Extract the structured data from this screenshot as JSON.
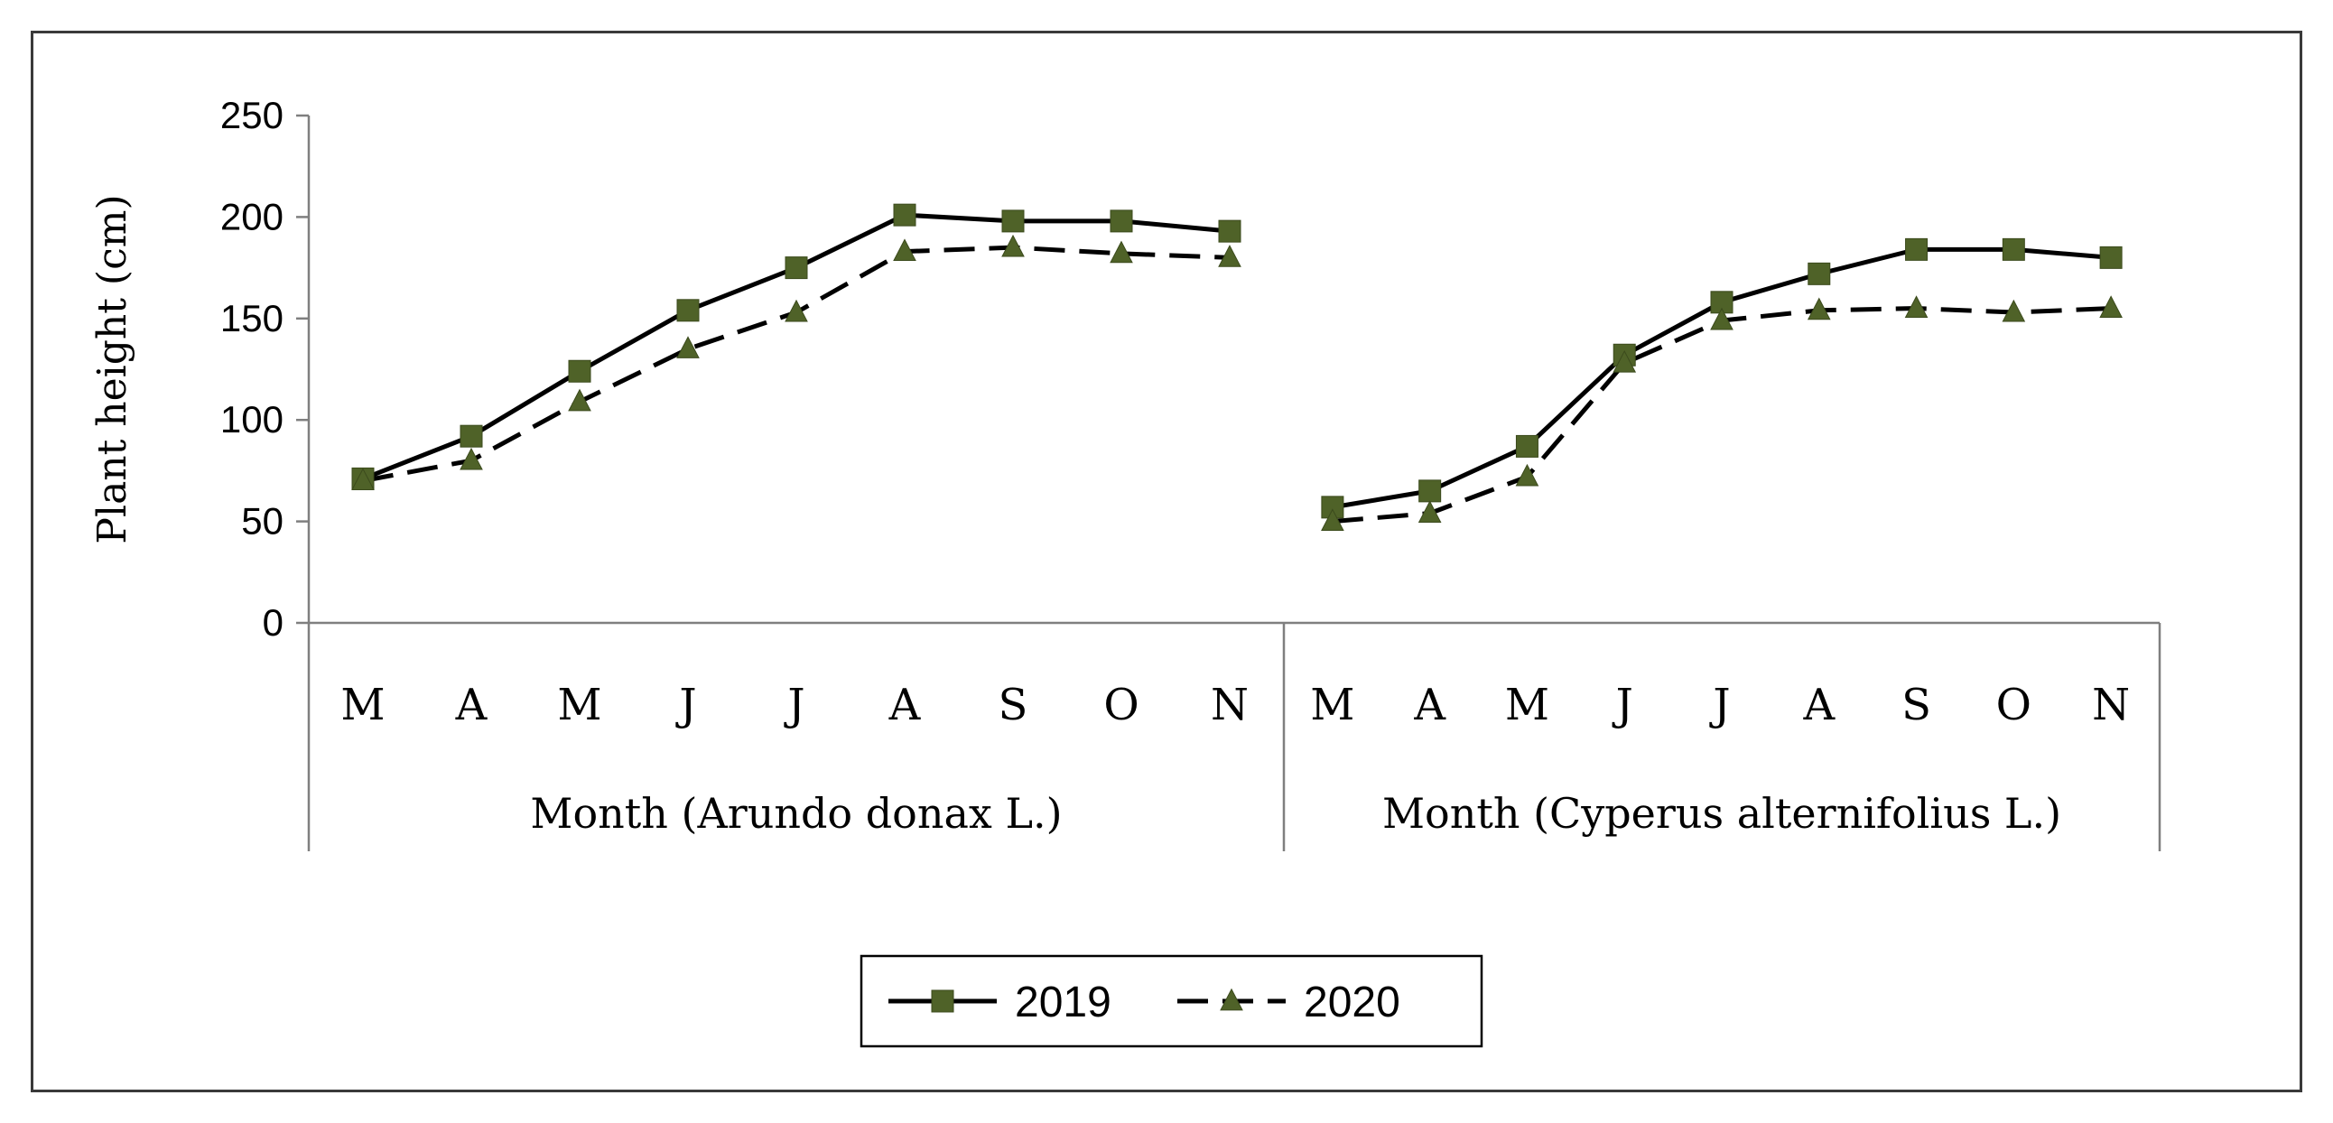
{
  "chart_data": {
    "type": "line",
    "ylabel": "Plant height (cm)",
    "ylim": [
      0,
      250
    ],
    "yticks": [
      0,
      50,
      100,
      150,
      200,
      250
    ],
    "grid": false,
    "legend_position": "bottom-center",
    "colors": {
      "marker_fill": "#4f6228",
      "line": "#000000",
      "axis": "#7f7f7f"
    },
    "groups": [
      {
        "label": "Month (Arundo donax L.)",
        "categories": [
          "M",
          "A",
          "M",
          "J",
          "J",
          "A",
          "S",
          "O",
          "N"
        ]
      },
      {
        "label": "Month (Cyperus alternifolius L.)",
        "categories": [
          "M",
          "A",
          "M",
          "J",
          "J",
          "A",
          "S",
          "O",
          "N"
        ]
      }
    ],
    "series": [
      {
        "name": "2019",
        "marker": "square",
        "dash": "solid",
        "values": [
          [
            71,
            92,
            124,
            154,
            175,
            201,
            198,
            198,
            193
          ],
          [
            57,
            65,
            87,
            132,
            158,
            172,
            184,
            184,
            180
          ]
        ]
      },
      {
        "name": "2020",
        "marker": "triangle",
        "dash": "dashed",
        "values": [
          [
            70,
            80,
            109,
            135,
            153,
            183,
            185,
            182,
            180
          ],
          [
            50,
            54,
            72,
            128,
            149,
            154,
            155,
            153,
            155
          ]
        ]
      }
    ]
  }
}
